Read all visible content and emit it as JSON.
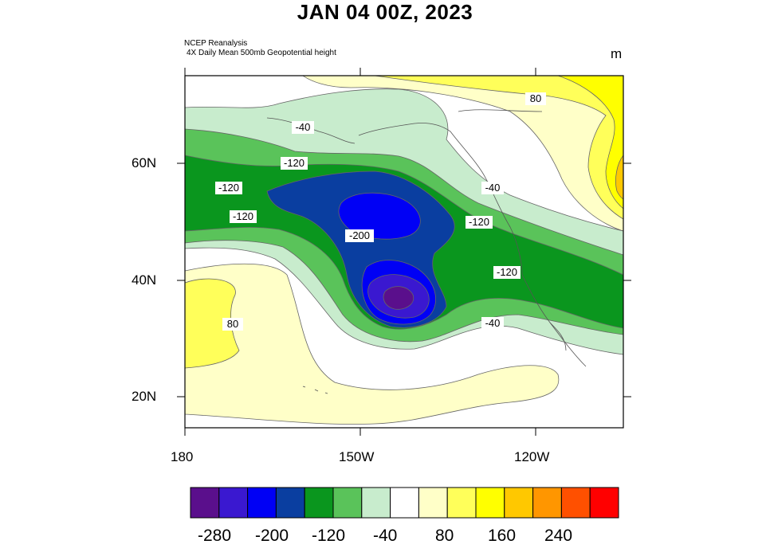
{
  "title": "JAN 04 00Z, 2023",
  "source_line1": "NCEP Reanalysis",
  "source_line2": "4X Daily Mean 500mb Geopotential height",
  "units": "m",
  "lat_labels": [
    "60N",
    "40N",
    "20N"
  ],
  "lon_labels": [
    "180",
    "150W",
    "120W"
  ],
  "contour_labels": [
    "-40",
    "-120",
    "-120",
    "-120",
    "-200",
    "-120",
    "-40",
    "-120",
    "-40",
    "80",
    "80"
  ],
  "colorbar": {
    "colors": [
      "#5a0f8c",
      "#3a18d0",
      "#0000f5",
      "#0a3ea0",
      "#0a961e",
      "#5ac35a",
      "#c8eccd",
      "#ffffff",
      "#ffffc8",
      "#ffff5a",
      "#ffff00",
      "#ffc800",
      "#ff9600",
      "#ff5000",
      "#ff0000"
    ],
    "tick_labels": [
      "-280",
      "-200",
      "-120",
      "-40",
      "80",
      "160",
      "240"
    ]
  }
}
